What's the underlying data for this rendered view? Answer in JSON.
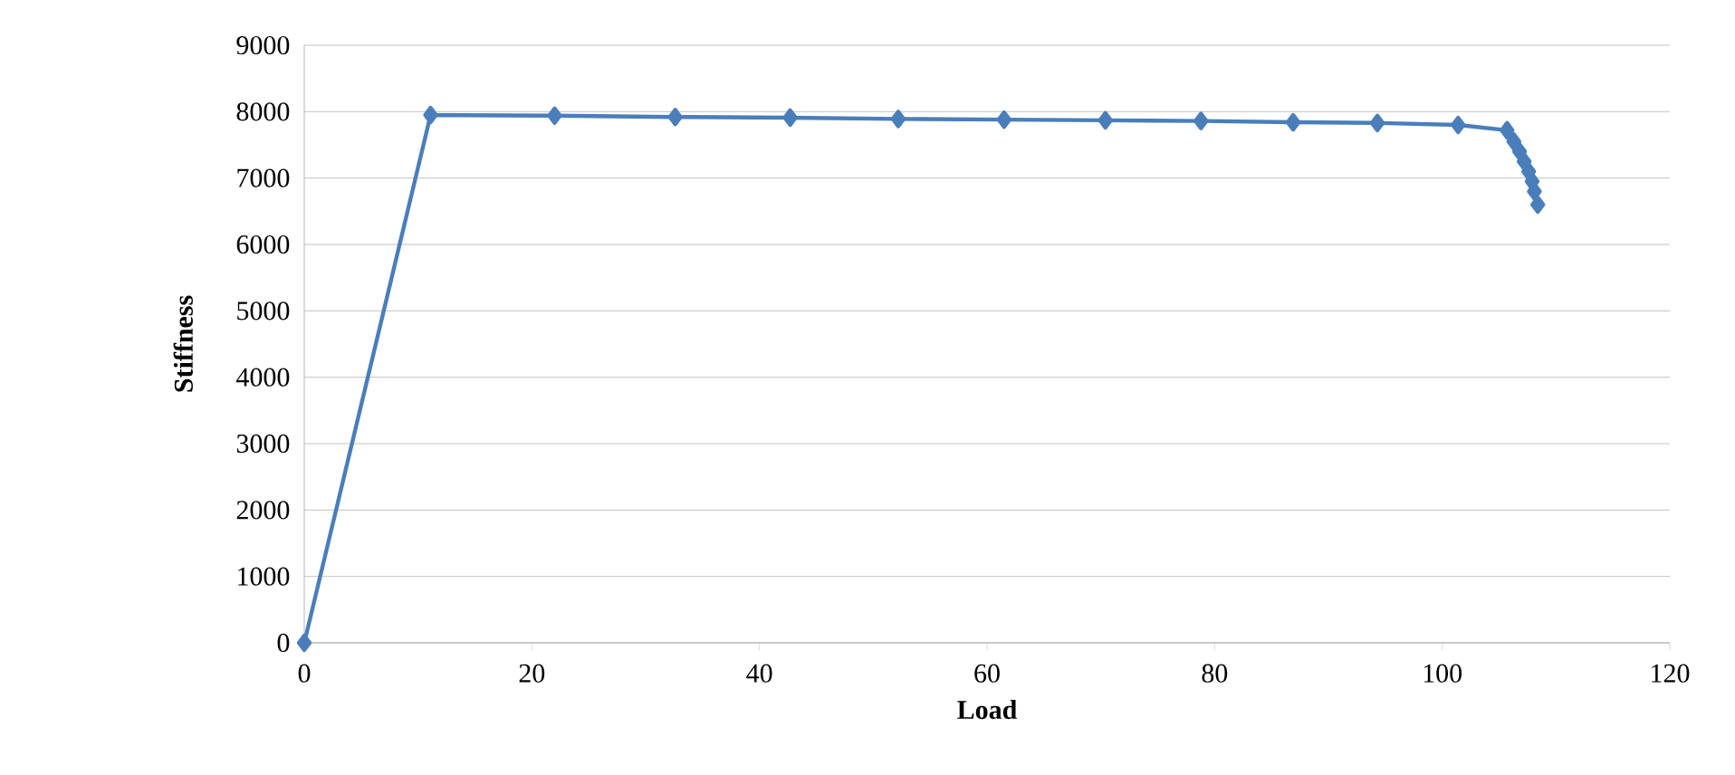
{
  "chart_data": {
    "type": "line",
    "xlabel": "Load",
    "ylabel": "Stiffness",
    "x": [
      0,
      11.1,
      22.0,
      32.6,
      42.7,
      52.2,
      61.5,
      70.4,
      78.8,
      86.9,
      94.3,
      101.4,
      105.7,
      106.3,
      106.8,
      107.2,
      107.6,
      107.9,
      108.1,
      108.4
    ],
    "series": [
      {
        "color": "#4a7ebb",
        "values": [
          0,
          7950,
          7940,
          7920,
          7910,
          7890,
          7880,
          7870,
          7860,
          7840,
          7830,
          7800,
          7720,
          7550,
          7400,
          7250,
          7100,
          6950,
          6800,
          6600
        ]
      }
    ],
    "xlim": [
      0,
      120
    ],
    "xticks": [
      0,
      20,
      40,
      60,
      80,
      100,
      120
    ],
    "ylim": [
      0,
      9000
    ],
    "yticks": [
      0,
      1000,
      2000,
      3000,
      4000,
      5000,
      6000,
      7000,
      8000,
      9000
    ],
    "grid": "y",
    "marker": "diamond",
    "line_style": "solid"
  }
}
